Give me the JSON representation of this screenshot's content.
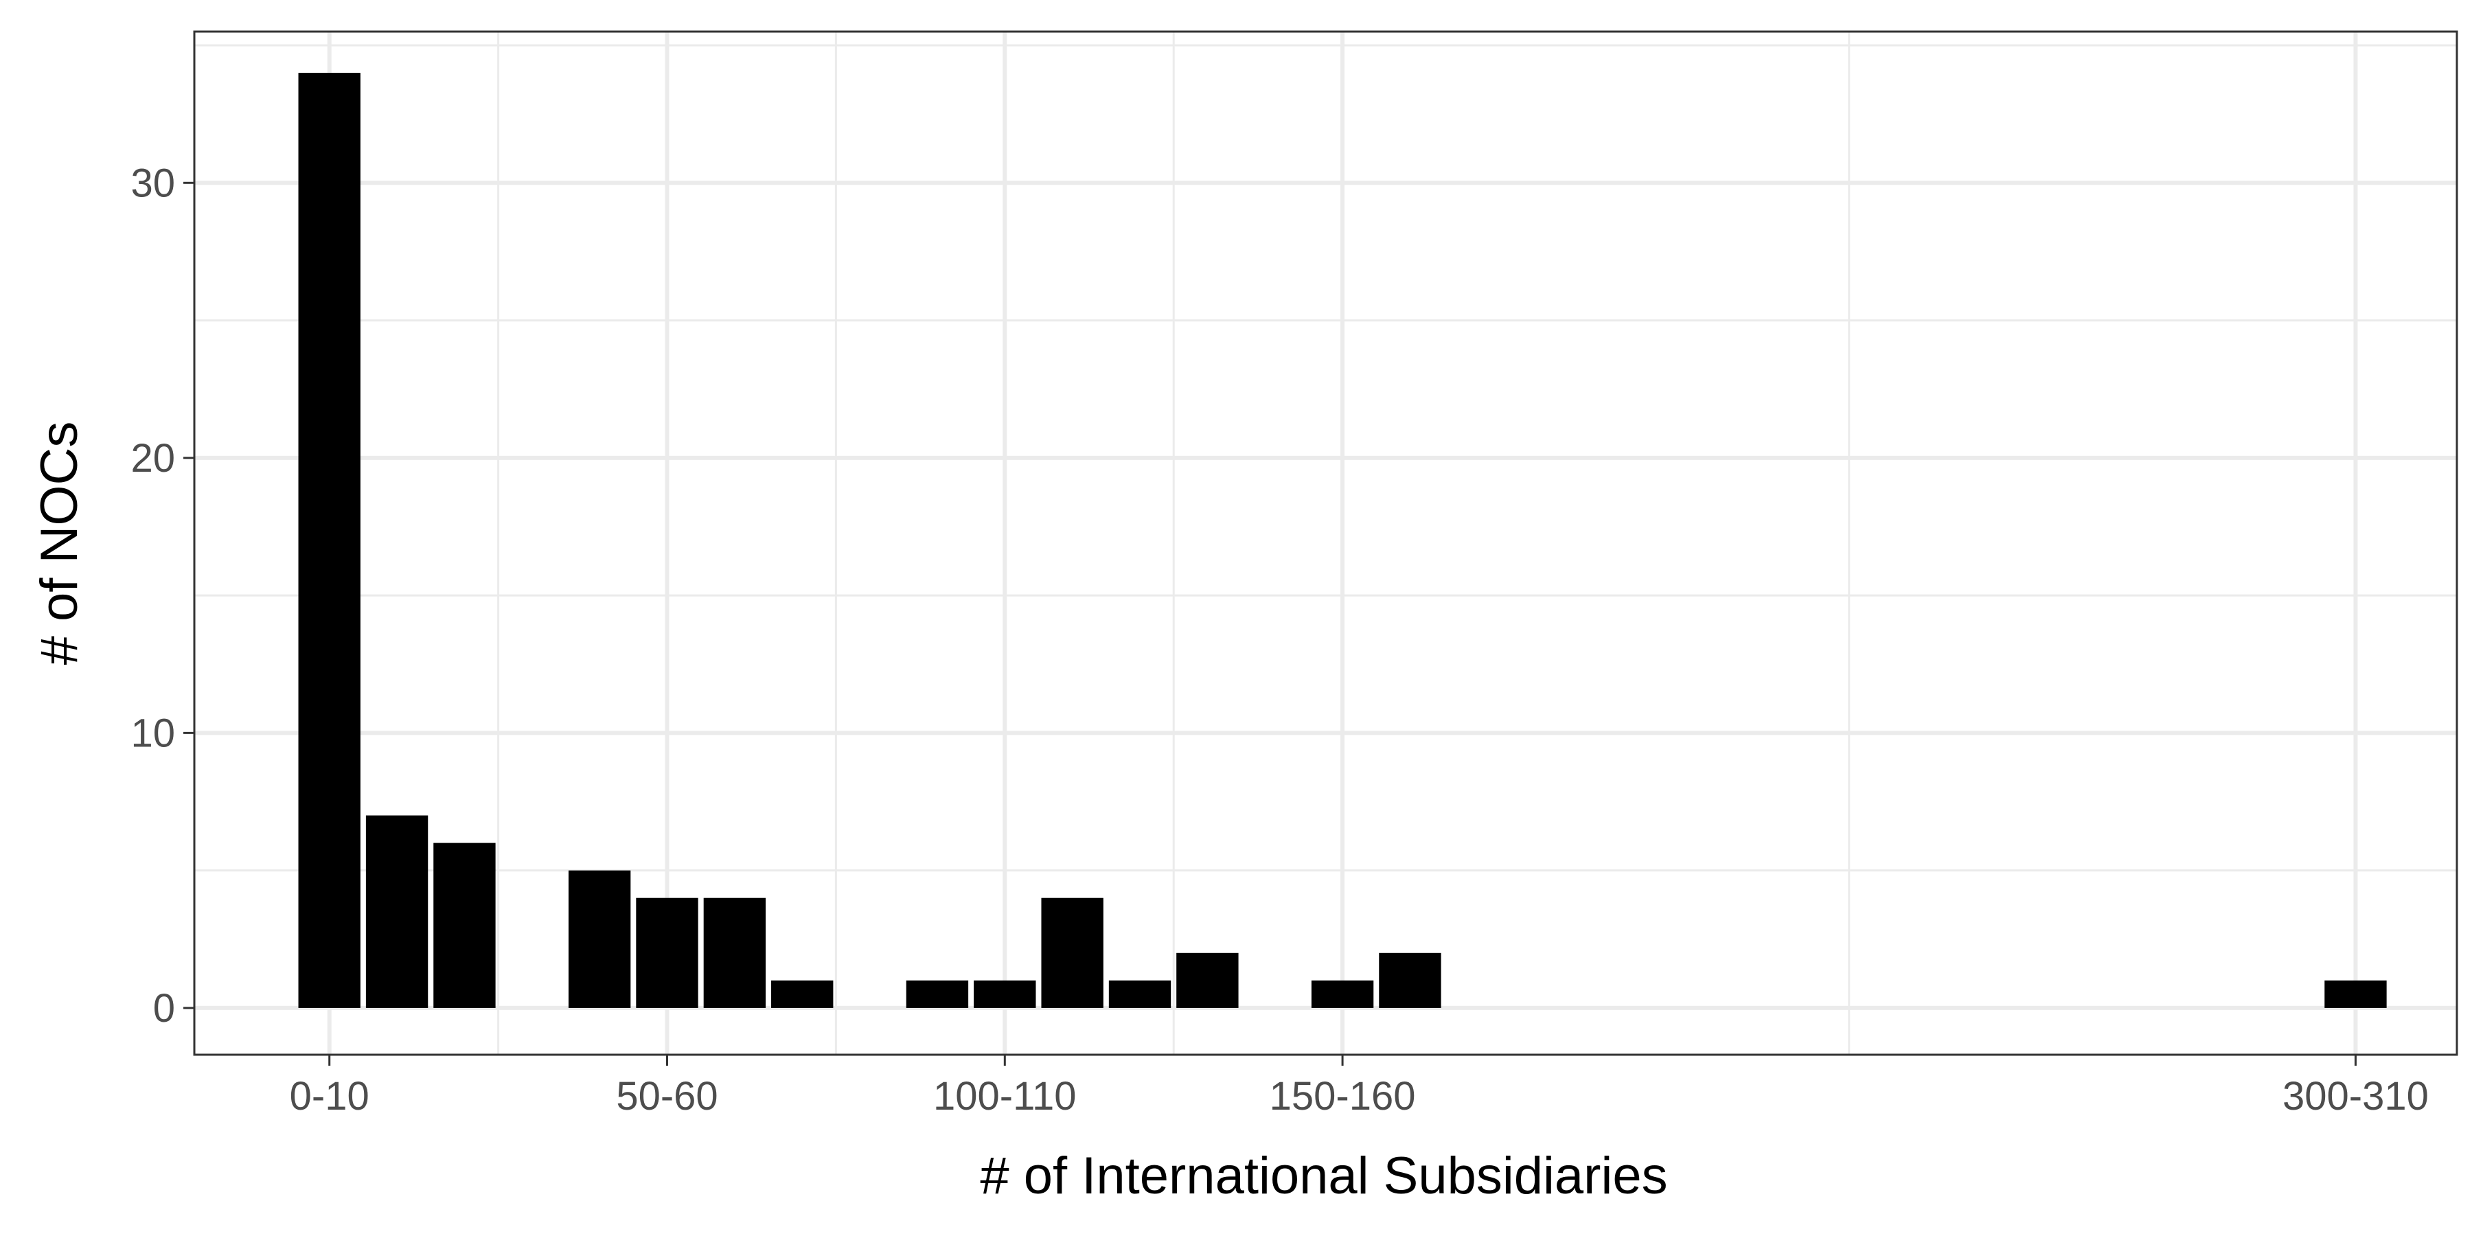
{
  "chart_data": {
    "type": "bar",
    "title": "",
    "xlabel": "# of International Subsidiaries",
    "ylabel": "# of NOCs",
    "x_bin_width": 10,
    "x": [
      0,
      10,
      20,
      40,
      50,
      60,
      70,
      90,
      100,
      110,
      120,
      130,
      150,
      160,
      300
    ],
    "values": [
      34,
      7,
      6,
      5,
      4,
      4,
      1,
      1,
      1,
      4,
      1,
      2,
      1,
      2,
      1
    ],
    "xlim": [
      -20,
      315
    ],
    "ylim": [
      -1.7,
      35.5
    ],
    "x_ticks": [
      {
        "x": 0,
        "label": "0-10"
      },
      {
        "x": 50,
        "label": "50-60"
      },
      {
        "x": 100,
        "label": "100-110"
      },
      {
        "x": 150,
        "label": "150-160"
      },
      {
        "x": 300,
        "label": "300-310"
      }
    ],
    "x_minor_gridlines": [
      25,
      75,
      125,
      225
    ],
    "y_ticks": [
      0,
      10,
      20,
      30
    ],
    "y_minor_gridlines": [
      5,
      15,
      25,
      35
    ],
    "grid": true,
    "legend": "none",
    "colors": {
      "bar": "#000000",
      "grid": "#ebebeb",
      "panel_border": "#333333",
      "tick_text": "#4d4d4d"
    }
  }
}
